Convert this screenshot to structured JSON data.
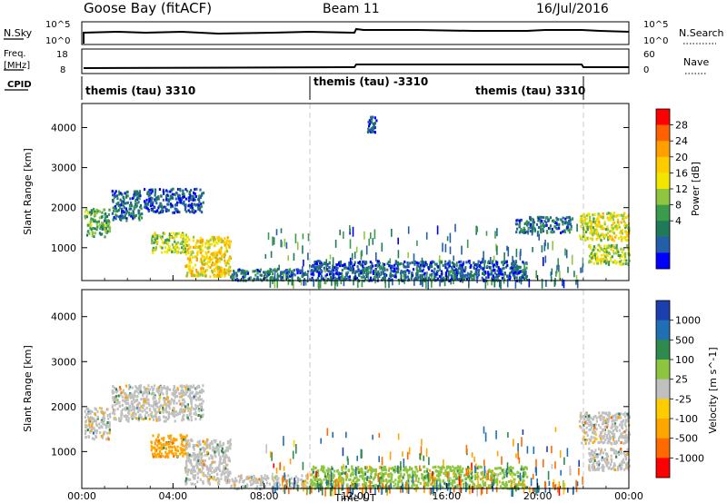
{
  "header": {
    "station": "Goose Bay (fitACF)",
    "beam": "Beam 11",
    "date": "16/Jul/2016"
  },
  "noise_panel": {
    "left_label": "N.Sky",
    "right_label": "N.Search",
    "left_ticks": [
      "10^5",
      "10^0"
    ],
    "right_ticks": [
      "10^5",
      "10^0"
    ]
  },
  "freq_panel": {
    "left_label_line1": "Freq.",
    "left_label_line2": "[MHz]",
    "right_label": "Nave",
    "left_ticks": [
      "18",
      "8"
    ],
    "right_ticks": [
      "60",
      "0"
    ]
  },
  "cpid": {
    "label": "CPID",
    "segments": [
      {
        "name": "themis (tau) 3310",
        "start_hour": 0,
        "end_hour": 10
      },
      {
        "name": "themis (tau) -3310",
        "start_hour": 10,
        "end_hour": 22
      },
      {
        "name": "themis (tau) 3310",
        "start_hour": 22,
        "end_hour": 24
      }
    ]
  },
  "power_colorbar": {
    "label": "Power [dB]",
    "ticks": [
      "28",
      "24",
      "20",
      "16",
      "12",
      "8",
      "4"
    ],
    "colors": [
      "#ff0000",
      "#ff6000",
      "#ff9f00",
      "#ffcc00",
      "#f2e600",
      "#8ec63f",
      "#3c9b4b",
      "#1f7a5a",
      "#245ea8",
      "#0000ff"
    ]
  },
  "velocity_colorbar": {
    "label": "Velocity [m s^-1]",
    "ticks": [
      "1000",
      "500",
      "100",
      "25",
      "-25",
      "-100",
      "-500",
      "-1000"
    ],
    "colors": [
      "#1c3fb0",
      "#1f6fb5",
      "#2f8a4e",
      "#8cc63f",
      "#c0c0c0",
      "#ffcc00",
      "#ffa500",
      "#ff6a00",
      "#ff0000"
    ]
  },
  "xaxis": {
    "label": "Time UT",
    "ticks": [
      "00:00",
      "04:00",
      "08:00",
      "12:00",
      "16:00",
      "20:00",
      "00:00"
    ]
  },
  "yaxis": {
    "label": "Slant Range [km]",
    "ticks": [
      "1000",
      "2000",
      "3000",
      "4000"
    ]
  },
  "chart_data": [
    {
      "type": "heatmap",
      "name": "power",
      "x_range_hours": [
        0,
        24
      ],
      "y_range_km": [
        180,
        4600
      ],
      "colorbar_ticks": [
        28,
        24,
        20,
        16,
        12,
        8,
        4
      ],
      "units": "dB",
      "regions": [
        {
          "t0": 0.1,
          "t1": 1.2,
          "r0": 1300,
          "r1": 2000,
          "level": 12
        },
        {
          "t0": 1.3,
          "t1": 2.6,
          "r0": 1700,
          "r1": 2450,
          "level": 8
        },
        {
          "t0": 2.7,
          "t1": 5.3,
          "r0": 1900,
          "r1": 2500,
          "level": 6
        },
        {
          "t0": 3.0,
          "t1": 4.6,
          "r0": 900,
          "r1": 1400,
          "level": 16
        },
        {
          "t0": 4.5,
          "t1": 6.5,
          "r0": 300,
          "r1": 1300,
          "level": 20
        },
        {
          "t0": 6.5,
          "t1": 9.9,
          "r0": 200,
          "r1": 500,
          "level": 8
        },
        {
          "t0": 10.0,
          "t1": 19.5,
          "r0": 200,
          "r1": 700,
          "level": 6
        },
        {
          "t0": 19.0,
          "t1": 21.5,
          "r0": 1400,
          "r1": 1800,
          "level": 8
        },
        {
          "t0": 21.8,
          "t1": 24.0,
          "r0": 1200,
          "r1": 1900,
          "level": 18
        },
        {
          "t0": 22.2,
          "t1": 24.0,
          "r0": 600,
          "r1": 1100,
          "level": 16
        },
        {
          "t0": 12.5,
          "t1": 12.9,
          "r0": 3900,
          "r1": 4300,
          "level": 6
        }
      ]
    },
    {
      "type": "heatmap",
      "name": "velocity",
      "x_range_hours": [
        0,
        24
      ],
      "y_range_km": [
        180,
        4600
      ],
      "colorbar_ticks": [
        1000,
        500,
        100,
        25,
        -25,
        -100,
        -500,
        -1000
      ],
      "units": "m s^-1",
      "regions": [
        {
          "t0": 0.1,
          "t1": 1.2,
          "r0": 1300,
          "r1": 2000,
          "level": 0
        },
        {
          "t0": 1.3,
          "t1": 5.3,
          "r0": 1700,
          "r1": 2500,
          "level": 0
        },
        {
          "t0": 3.0,
          "t1": 4.6,
          "r0": 900,
          "r1": 1400,
          "level": -150
        },
        {
          "t0": 4.5,
          "t1": 6.5,
          "r0": 300,
          "r1": 1300,
          "level": 0
        },
        {
          "t0": 6.5,
          "t1": 9.9,
          "r0": 200,
          "r1": 500,
          "level": 0
        },
        {
          "t0": 10.0,
          "t1": 19.5,
          "r0": 200,
          "r1": 700,
          "level": 50
        },
        {
          "t0": 21.8,
          "t1": 24.0,
          "r0": 1200,
          "r1": 1900,
          "level": 0
        },
        {
          "t0": 22.2,
          "t1": 24.0,
          "r0": 600,
          "r1": 1100,
          "level": 0
        }
      ]
    }
  ]
}
